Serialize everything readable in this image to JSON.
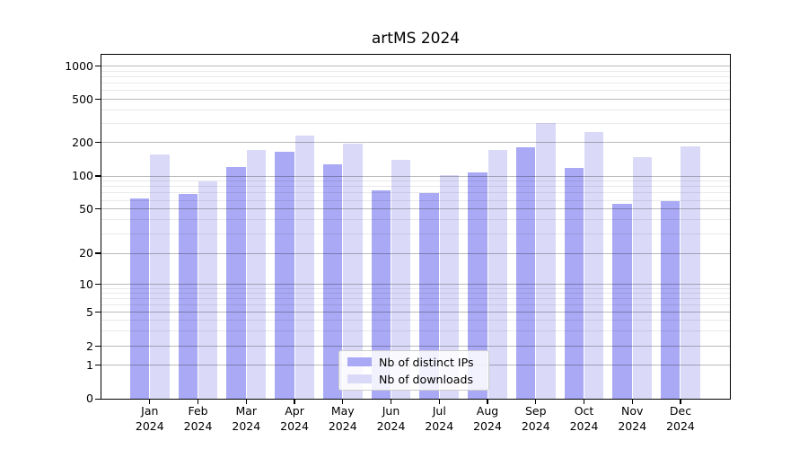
{
  "title": "artMS 2024",
  "chart_data": {
    "type": "bar",
    "title": "artMS 2024",
    "categories": [
      "Jan",
      "Feb",
      "Mar",
      "Apr",
      "May",
      "Jun",
      "Jul",
      "Aug",
      "Sep",
      "Oct",
      "Nov",
      "Dec"
    ],
    "category_year": "2024",
    "series": [
      {
        "name": "Nb of distinct IPs",
        "color": "#a9a9f5",
        "values": [
          62,
          69,
          120,
          165,
          128,
          74,
          70,
          108,
          180,
          118,
          56,
          59
        ]
      },
      {
        "name": "Nb of downloads",
        "color": "#dadaf8",
        "values": [
          155,
          90,
          170,
          230,
          197,
          140,
          101,
          170,
          300,
          250,
          148,
          184
        ]
      }
    ],
    "yscale": "symlog",
    "y_ticks": [
      0,
      1,
      2,
      5,
      10,
      20,
      50,
      100,
      200,
      500,
      1000
    ],
    "ylim": [
      0,
      1100
    ],
    "grid": true,
    "legend_position": "lower center"
  }
}
